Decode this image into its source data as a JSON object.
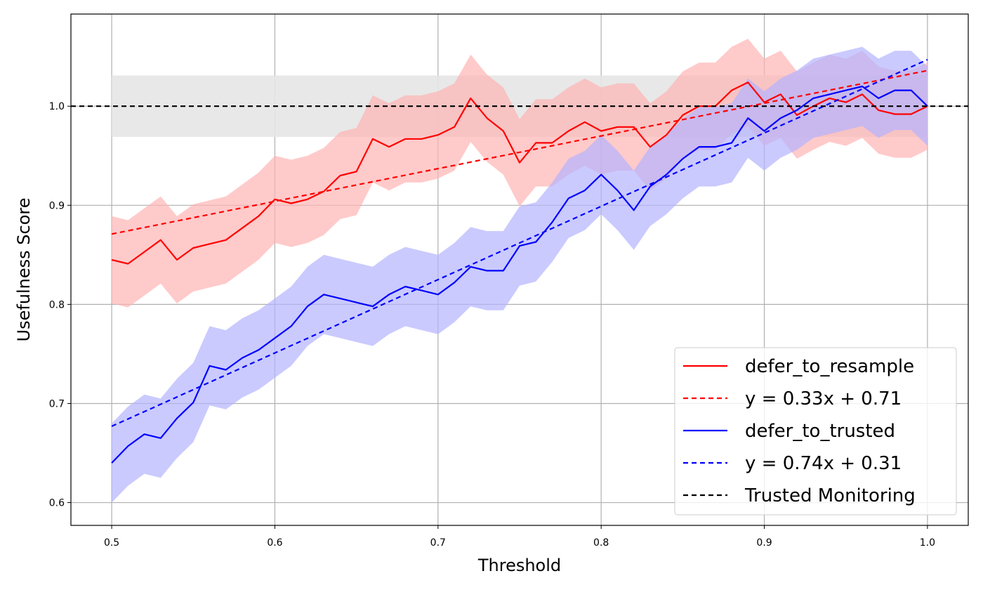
{
  "chart_data": {
    "type": "line",
    "title": "",
    "xlabel": "Threshold",
    "ylabel": "Usefulness Score",
    "xlim": [
      0.475,
      1.025
    ],
    "ylim": [
      0.577,
      1.093
    ],
    "xticks": [
      0.5,
      0.6,
      0.7,
      0.8,
      0.9,
      1.0
    ],
    "xtick_labels": [
      "0.5",
      "0.6",
      "0.7",
      "0.8",
      "0.9",
      "1.0"
    ],
    "yticks": [
      0.6,
      0.7,
      0.8,
      0.9,
      1.0
    ],
    "ytick_labels": [
      "0.6",
      "0.7",
      "0.8",
      "0.9",
      "1.0"
    ],
    "grid": true,
    "legend_position": "lower-right",
    "x": [
      0.5,
      0.51,
      0.52,
      0.53,
      0.54,
      0.55,
      0.56,
      0.57,
      0.58,
      0.59,
      0.6,
      0.61,
      0.62,
      0.63,
      0.64,
      0.65,
      0.66,
      0.67,
      0.68,
      0.69,
      0.7,
      0.71,
      0.72,
      0.73,
      0.74,
      0.75,
      0.76,
      0.77,
      0.78,
      0.79,
      0.8,
      0.81,
      0.82,
      0.83,
      0.84,
      0.85,
      0.86,
      0.87,
      0.88,
      0.89,
      0.9,
      0.91,
      0.92,
      0.93,
      0.94,
      0.95,
      0.96,
      0.97,
      0.98,
      0.99,
      1.0
    ],
    "series": [
      {
        "name": "defer_to_resample",
        "color": "#ff0000",
        "band_color": "#ffb3b3",
        "values": [
          0.845,
          0.841,
          0.853,
          0.865,
          0.845,
          0.857,
          0.861,
          0.865,
          0.877,
          0.889,
          0.906,
          0.902,
          0.906,
          0.914,
          0.93,
          0.934,
          0.967,
          0.959,
          0.967,
          0.967,
          0.971,
          0.979,
          1.008,
          0.988,
          0.975,
          0.943,
          0.963,
          0.963,
          0.975,
          0.984,
          0.975,
          0.979,
          0.979,
          0.959,
          0.971,
          0.991,
          1.0,
          1.0,
          1.016,
          1.024,
          1.004,
          1.012,
          0.991,
          1.0,
          1.008,
          1.004,
          1.012,
          0.996,
          0.992,
          0.992,
          1.0
        ],
        "lower": [
          0.801,
          0.797,
          0.809,
          0.821,
          0.801,
          0.813,
          0.817,
          0.821,
          0.833,
          0.845,
          0.862,
          0.858,
          0.862,
          0.87,
          0.886,
          0.89,
          0.923,
          0.915,
          0.923,
          0.923,
          0.927,
          0.935,
          0.964,
          0.944,
          0.931,
          0.899,
          0.919,
          0.919,
          0.931,
          0.94,
          0.931,
          0.935,
          0.935,
          0.915,
          0.927,
          0.947,
          0.956,
          0.956,
          0.972,
          0.98,
          0.96,
          0.968,
          0.947,
          0.956,
          0.964,
          0.96,
          0.968,
          0.952,
          0.948,
          0.948,
          0.956
        ],
        "upper": [
          0.889,
          0.885,
          0.897,
          0.909,
          0.889,
          0.901,
          0.905,
          0.909,
          0.921,
          0.933,
          0.95,
          0.946,
          0.95,
          0.958,
          0.974,
          0.978,
          1.011,
          1.003,
          1.011,
          1.011,
          1.015,
          1.023,
          1.052,
          1.032,
          1.019,
          0.987,
          1.007,
          1.007,
          1.019,
          1.028,
          1.019,
          1.023,
          1.023,
          1.003,
          1.015,
          1.035,
          1.044,
          1.044,
          1.06,
          1.068,
          1.048,
          1.056,
          1.035,
          1.044,
          1.052,
          1.048,
          1.056,
          1.04,
          1.036,
          1.036,
          1.044
        ]
      },
      {
        "name": "y = 0.33x + 0.71",
        "color": "#ff0000",
        "dashed": true,
        "fit": {
          "slope": 0.33,
          "intercept": 0.706
        }
      },
      {
        "name": "defer_to_trusted",
        "color": "#0000ff",
        "band_color": "#b3b3ff",
        "values": [
          0.64,
          0.657,
          0.669,
          0.665,
          0.685,
          0.701,
          0.738,
          0.734,
          0.746,
          0.754,
          0.766,
          0.778,
          0.798,
          0.81,
          0.806,
          0.802,
          0.798,
          0.81,
          0.818,
          0.814,
          0.81,
          0.822,
          0.838,
          0.834,
          0.834,
          0.859,
          0.863,
          0.883,
          0.907,
          0.915,
          0.931,
          0.915,
          0.895,
          0.919,
          0.931,
          0.947,
          0.959,
          0.959,
          0.963,
          0.988,
          0.975,
          0.988,
          0.996,
          1.008,
          1.012,
          1.016,
          1.02,
          1.008,
          1.016,
          1.016,
          1.0
        ],
        "lower": [
          0.6,
          0.617,
          0.629,
          0.625,
          0.645,
          0.661,
          0.698,
          0.694,
          0.706,
          0.714,
          0.726,
          0.738,
          0.758,
          0.77,
          0.766,
          0.762,
          0.758,
          0.77,
          0.778,
          0.774,
          0.77,
          0.782,
          0.798,
          0.794,
          0.794,
          0.819,
          0.823,
          0.843,
          0.867,
          0.875,
          0.891,
          0.875,
          0.855,
          0.879,
          0.891,
          0.907,
          0.919,
          0.919,
          0.923,
          0.948,
          0.935,
          0.948,
          0.956,
          0.968,
          0.972,
          0.976,
          0.98,
          0.968,
          0.976,
          0.976,
          0.96
        ],
        "upper": [
          0.68,
          0.697,
          0.709,
          0.705,
          0.725,
          0.741,
          0.778,
          0.774,
          0.786,
          0.794,
          0.806,
          0.818,
          0.838,
          0.85,
          0.846,
          0.842,
          0.838,
          0.85,
          0.858,
          0.854,
          0.85,
          0.862,
          0.878,
          0.874,
          0.874,
          0.899,
          0.903,
          0.923,
          0.947,
          0.955,
          0.971,
          0.955,
          0.935,
          0.959,
          0.971,
          0.987,
          0.999,
          0.999,
          1.003,
          1.028,
          1.015,
          1.028,
          1.036,
          1.048,
          1.052,
          1.056,
          1.06,
          1.048,
          1.056,
          1.056,
          1.04
        ]
      },
      {
        "name": "y = 0.74x + 0.31",
        "color": "#0000ff",
        "dashed": true,
        "fit": {
          "slope": 0.74,
          "intercept": 0.307
        }
      },
      {
        "name": "Trusted Monitoring",
        "color": "#000000",
        "dashed": true,
        "constant": 1.0,
        "band": [
          0.969,
          1.031
        ],
        "band_color": "#e5e5e5"
      }
    ]
  }
}
